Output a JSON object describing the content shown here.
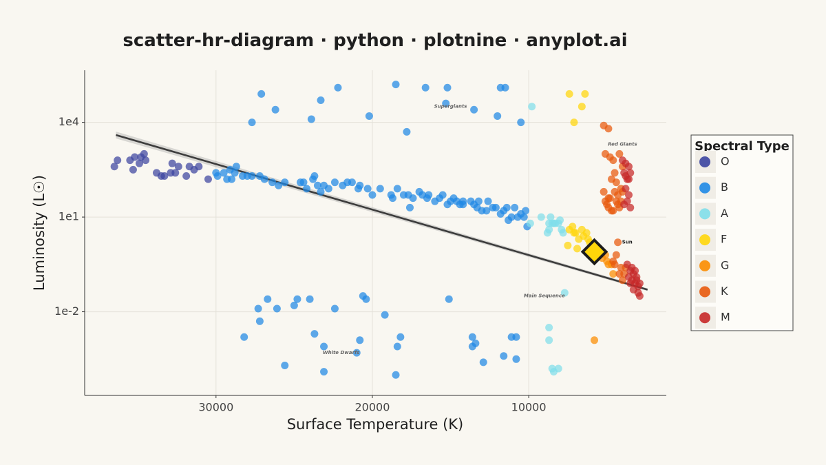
{
  "chart_data": {
    "type": "scatter",
    "title": "scatter-hr-diagram · python · plotnine · anyplot.ai",
    "xlabel": "Surface Temperature (K)",
    "ylabel": "Luminosity (L☉)",
    "x_scale": "linear",
    "x_reversed": true,
    "xlim": [
      38400,
      1200
    ],
    "x_ticks": [
      30000,
      20000,
      10000
    ],
    "x_tick_labels": [
      "30000",
      "20000",
      "10000"
    ],
    "y_scale": "log",
    "ylim_log10": [
      -4.65,
      5.65
    ],
    "y_ticks": [
      0.01,
      10,
      10000
    ],
    "y_tick_labels": [
      "1e-2",
      "1e1",
      "1e4"
    ],
    "grid": true,
    "legend": {
      "title": "Spectral Type",
      "position": "right",
      "entries": [
        {
          "label": "O",
          "color": "#3b44a0"
        },
        {
          "label": "B",
          "color": "#1e88e5"
        },
        {
          "label": "A",
          "color": "#80deea"
        },
        {
          "label": "F",
          "color": "#ffd60a"
        },
        {
          "label": "G",
          "color": "#fb8c00"
        },
        {
          "label": "K",
          "color": "#e8590c"
        },
        {
          "label": "M",
          "color": "#c62828"
        }
      ]
    },
    "annotations": [
      {
        "text": "Supergiants",
        "x": 15000,
        "logL": 4.5
      },
      {
        "text": "Red Giants",
        "x": 4000,
        "logL": 3.3
      },
      {
        "text": "Sun",
        "x": 3700,
        "logL": 0.2
      },
      {
        "text": "Main Sequence",
        "x": 9000,
        "logL": -1.5
      },
      {
        "text": "White Dwarfs",
        "x": 22000,
        "logL": -3.3
      }
    ],
    "trend_line": {
      "x": [
        36400,
        2400
      ],
      "logL": [
        3.6,
        -1.3
      ]
    },
    "sun": {
      "label": "Sun",
      "x": 5800,
      "logL": -0.1,
      "color": "#ffd60a"
    },
    "series": [
      {
        "name": "O",
        "color": "#3b44a0",
        "points": [
          [
            36500,
            2.6
          ],
          [
            36300,
            2.8
          ],
          [
            35500,
            2.8
          ],
          [
            35300,
            2.5
          ],
          [
            35200,
            2.9
          ],
          [
            34900,
            2.7
          ],
          [
            34800,
            2.9
          ],
          [
            34600,
            3.0
          ],
          [
            34500,
            2.8
          ],
          [
            33800,
            2.4
          ],
          [
            33500,
            2.3
          ],
          [
            33300,
            2.3
          ],
          [
            32900,
            2.4
          ],
          [
            32800,
            2.7
          ],
          [
            32600,
            2.4
          ],
          [
            32400,
            2.6
          ],
          [
            31900,
            2.3
          ],
          [
            31700,
            2.6
          ],
          [
            31400,
            2.5
          ],
          [
            31100,
            2.6
          ],
          [
            30500,
            2.2
          ]
        ]
      },
      {
        "name": "B",
        "color": "#1e88e5",
        "points": [
          [
            30000,
            2.4
          ],
          [
            29900,
            2.3
          ],
          [
            29500,
            2.4
          ],
          [
            29300,
            2.2
          ],
          [
            29100,
            2.5
          ],
          [
            29000,
            2.2
          ],
          [
            28800,
            2.4
          ],
          [
            28700,
            2.6
          ],
          [
            28300,
            2.3
          ],
          [
            28000,
            2.3
          ],
          [
            27700,
            2.3
          ],
          [
            27200,
            2.3
          ],
          [
            26900,
            2.2
          ],
          [
            26400,
            2.1
          ],
          [
            26000,
            2.0
          ],
          [
            25600,
            2.1
          ],
          [
            24600,
            2.1
          ],
          [
            24400,
            2.1
          ],
          [
            24200,
            1.9
          ],
          [
            23800,
            2.2
          ],
          [
            23700,
            2.3
          ],
          [
            23500,
            2.0
          ],
          [
            23300,
            1.8
          ],
          [
            23100,
            2.0
          ],
          [
            22800,
            1.9
          ],
          [
            22400,
            2.1
          ],
          [
            21900,
            2.0
          ],
          [
            21600,
            2.1
          ],
          [
            21300,
            2.1
          ],
          [
            20900,
            1.9
          ],
          [
            20800,
            2.0
          ],
          [
            20300,
            1.9
          ],
          [
            20000,
            1.7
          ],
          [
            19500,
            1.9
          ],
          [
            18800,
            1.7
          ],
          [
            18700,
            1.6
          ],
          [
            18400,
            1.9
          ],
          [
            18000,
            1.7
          ],
          [
            17700,
            1.7
          ],
          [
            17400,
            1.6
          ],
          [
            17000,
            1.8
          ],
          [
            16800,
            1.7
          ],
          [
            16400,
            1.7
          ],
          [
            16000,
            1.5
          ],
          [
            15700,
            1.6
          ],
          [
            15500,
            1.7
          ],
          [
            15200,
            1.4
          ],
          [
            15000,
            1.5
          ],
          [
            14800,
            1.6
          ],
          [
            14600,
            1.5
          ],
          [
            14400,
            1.4
          ],
          [
            14200,
            1.5
          ],
          [
            13700,
            1.5
          ],
          [
            13500,
            1.4
          ],
          [
            13300,
            1.3
          ],
          [
            13200,
            1.5
          ],
          [
            13000,
            1.2
          ],
          [
            12600,
            1.5
          ],
          [
            12300,
            1.3
          ],
          [
            12100,
            1.3
          ],
          [
            11800,
            1.1
          ],
          [
            11600,
            1.2
          ],
          [
            11400,
            1.3
          ],
          [
            11100,
            1.0
          ],
          [
            10900,
            1.3
          ],
          [
            10700,
            1.0
          ],
          [
            10500,
            1.1
          ],
          [
            10300,
            1.0
          ],
          [
            10200,
            1.2
          ],
          [
            10100,
            0.7
          ],
          [
            17600,
            1.3
          ],
          [
            14200,
            1.4
          ],
          [
            16500,
            1.6
          ],
          [
            12700,
            1.2
          ],
          [
            11300,
            0.9
          ],
          [
            27100,
            4.9
          ],
          [
            23300,
            4.7
          ],
          [
            22200,
            5.1
          ],
          [
            18500,
            5.2
          ],
          [
            16600,
            5.1
          ],
          [
            15200,
            5.1
          ],
          [
            11800,
            5.1
          ],
          [
            11500,
            5.1
          ],
          [
            27700,
            4.0
          ],
          [
            26200,
            4.4
          ],
          [
            23900,
            4.1
          ],
          [
            20200,
            4.2
          ],
          [
            17800,
            3.7
          ],
          [
            15300,
            4.6
          ],
          [
            13500,
            4.4
          ],
          [
            12000,
            4.2
          ],
          [
            10500,
            4.0
          ],
          [
            28200,
            -2.8
          ],
          [
            27300,
            -1.9
          ],
          [
            27200,
            -2.3
          ],
          [
            26700,
            -1.6
          ],
          [
            26100,
            -1.9
          ],
          [
            25000,
            -1.8
          ],
          [
            24800,
            -1.6
          ],
          [
            24000,
            -1.6
          ],
          [
            23700,
            -2.7
          ],
          [
            23100,
            -3.1
          ],
          [
            22400,
            -1.9
          ],
          [
            20800,
            -2.9
          ],
          [
            20600,
            -1.5
          ],
          [
            20400,
            -1.6
          ],
          [
            19200,
            -2.1
          ],
          [
            18400,
            -3.1
          ],
          [
            18200,
            -2.8
          ],
          [
            15100,
            -1.6
          ],
          [
            13600,
            -2.8
          ],
          [
            13400,
            -3.0
          ],
          [
            12900,
            -3.6
          ],
          [
            11600,
            -3.4
          ],
          [
            11100,
            -2.8
          ],
          [
            10800,
            -2.8
          ],
          [
            21000,
            -3.3
          ],
          [
            25600,
            -3.7
          ],
          [
            23100,
            -3.9
          ],
          [
            18500,
            -4.0
          ],
          [
            13600,
            -3.1
          ],
          [
            10800,
            -3.5
          ]
        ]
      },
      {
        "name": "A",
        "color": "#80deea",
        "points": [
          [
            9900,
            0.8
          ],
          [
            9200,
            1.0
          ],
          [
            8800,
            0.5
          ],
          [
            8600,
            1.0
          ],
          [
            8400,
            0.8
          ],
          [
            8300,
            0.8
          ],
          [
            8000,
            0.9
          ],
          [
            7800,
            0.5
          ],
          [
            8700,
            0.8
          ],
          [
            8100,
            0.8
          ],
          [
            8500,
            0.8
          ],
          [
            7900,
            0.6
          ],
          [
            8700,
            0.6
          ],
          [
            9800,
            4.5
          ],
          [
            7700,
            -1.4
          ],
          [
            8700,
            -2.5
          ],
          [
            8700,
            -2.9
          ],
          [
            8400,
            -3.9
          ],
          [
            8100,
            -3.8
          ],
          [
            8500,
            -3.8
          ]
        ]
      },
      {
        "name": "F",
        "color": "#ffd60a",
        "points": [
          [
            7400,
            0.6
          ],
          [
            7200,
            0.7
          ],
          [
            7000,
            0.5
          ],
          [
            6800,
            0.3
          ],
          [
            6600,
            0.6
          ],
          [
            6500,
            0.4
          ],
          [
            6300,
            0.5
          ],
          [
            6100,
            0.2
          ],
          [
            7500,
            0.1
          ],
          [
            6900,
            0.0
          ],
          [
            6200,
            0.3
          ],
          [
            7100,
            0.5
          ],
          [
            7400,
            4.9
          ],
          [
            6400,
            4.9
          ],
          [
            6600,
            4.5
          ],
          [
            7100,
            4.0
          ]
        ]
      },
      {
        "name": "G",
        "color": "#fb8c00",
        "points": [
          [
            5900,
            0.1
          ],
          [
            5600,
            -0.2
          ],
          [
            5500,
            0.0
          ],
          [
            5300,
            -0.3
          ],
          [
            5100,
            -0.2
          ],
          [
            4900,
            -0.5
          ],
          [
            4700,
            -0.5
          ],
          [
            5700,
            -0.3
          ],
          [
            5000,
            -0.4
          ],
          [
            4600,
            -0.8
          ],
          [
            5400,
            -0.1
          ],
          [
            5800,
            -2.9
          ]
        ]
      },
      {
        "name": "K",
        "color": "#e8590c",
        "points": [
          [
            5200,
            3.9
          ],
          [
            4900,
            3.8
          ],
          [
            5100,
            3.0
          ],
          [
            4800,
            2.9
          ],
          [
            4600,
            2.8
          ],
          [
            4700,
            2.2
          ],
          [
            4400,
            2.1
          ],
          [
            4500,
            2.4
          ],
          [
            4200,
            3.0
          ],
          [
            4000,
            2.6
          ],
          [
            4300,
            1.7
          ],
          [
            4100,
            1.5
          ],
          [
            4500,
            1.8
          ],
          [
            4800,
            1.6
          ],
          [
            5100,
            1.5
          ],
          [
            5200,
            1.8
          ],
          [
            4900,
            1.3
          ],
          [
            4600,
            1.2
          ],
          [
            4300,
            1.4
          ],
          [
            4400,
            1.5
          ],
          [
            4200,
            1.3
          ],
          [
            5000,
            1.4
          ],
          [
            4700,
            1.2
          ],
          [
            4000,
            1.8
          ],
          [
            4100,
            1.9
          ],
          [
            4900,
            1.6
          ],
          [
            4400,
            -0.2
          ],
          [
            4500,
            -0.5
          ],
          [
            4100,
            -0.6
          ],
          [
            4200,
            -0.8
          ],
          [
            3900,
            -0.8
          ],
          [
            4300,
            0.2
          ],
          [
            4600,
            -0.4
          ],
          [
            3800,
            -0.6
          ],
          [
            4000,
            -1.0
          ]
        ]
      },
      {
        "name": "M",
        "color": "#c62828",
        "points": [
          [
            4000,
            2.8
          ],
          [
            3800,
            2.7
          ],
          [
            3600,
            2.6
          ],
          [
            3900,
            2.4
          ],
          [
            3700,
            2.2
          ],
          [
            3500,
            2.4
          ],
          [
            3800,
            1.9
          ],
          [
            3600,
            1.7
          ],
          [
            3700,
            1.5
          ],
          [
            3500,
            1.3
          ],
          [
            3900,
            1.4
          ],
          [
            3600,
            2.2
          ],
          [
            3800,
            2.3
          ],
          [
            3700,
            -0.5
          ],
          [
            3500,
            -0.7
          ],
          [
            3300,
            -0.8
          ],
          [
            3100,
            -0.9
          ],
          [
            3400,
            -1.0
          ],
          [
            3200,
            -1.1
          ],
          [
            3000,
            -1.2
          ],
          [
            3300,
            -1.3
          ],
          [
            2900,
            -1.5
          ],
          [
            3500,
            -1.1
          ],
          [
            3100,
            -1.0
          ],
          [
            3000,
            -1.4
          ],
          [
            3400,
            -0.6
          ],
          [
            3600,
            -0.9
          ],
          [
            3200,
            -0.7
          ],
          [
            2900,
            -1.1
          ]
        ]
      }
    ]
  }
}
